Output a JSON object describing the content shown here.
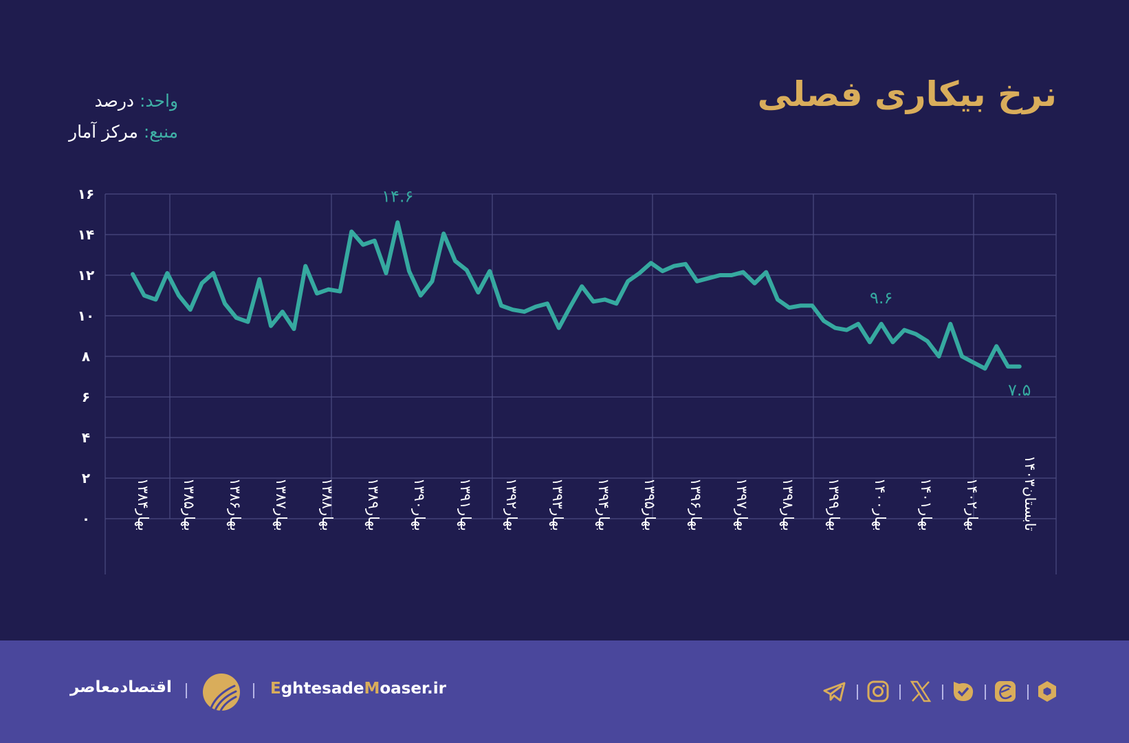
{
  "title": "نرخ بیکاری فصلی",
  "meta": {
    "unit_key": "واحد:",
    "unit_value": "درصد",
    "source_key": "منبع:",
    "source_value": "مرکز آمار"
  },
  "colors": {
    "background": "#1f1c4e",
    "line": "#36a9a0",
    "title": "#d9ad5b",
    "footer": "#4a479c",
    "grid": "#4b4a80"
  },
  "chart_data": {
    "type": "line",
    "title": "نرخ بیکاری فصلی",
    "ylabel": "درصد",
    "ylim": [
      0,
      16
    ],
    "y_ticks": [
      0,
      2,
      4,
      6,
      8,
      10,
      12,
      14,
      16
    ],
    "y_tick_labels": [
      "۰",
      "۲",
      "۴",
      "۶",
      "۸",
      "۱۰",
      "۱۲",
      "۱۴",
      "۱۶"
    ],
    "grid": true,
    "x_tick_labels": [
      "بهار۱۳۸۴",
      "بهار۱۳۸۵",
      "بهار۱۳۸۶",
      "بهار۱۳۸۷",
      "بهار۱۳۸۸",
      "بهار۱۳۸۹",
      "بهار۱۳۹۰",
      "بهار۱۳۹۱",
      "بهار۱۳۹۲",
      "بهار۱۳۹۳",
      "بهار۱۳۹۴",
      "بهار۱۳۹۵",
      "بهار۱۳۹۶",
      "بهار۱۳۹۷",
      "بهار۱۳۹۸",
      "بهار۱۳۹۹",
      "بهار۱۴۰۰",
      "بهار۱۴۰۱",
      "بهار۱۴۰۲",
      "تابستان۱۴۰۳"
    ],
    "x_tick_indices": [
      0,
      4,
      8,
      12,
      16,
      20,
      24,
      28,
      32,
      36,
      40,
      44,
      48,
      52,
      56,
      60,
      64,
      68,
      72,
      77
    ],
    "series": [
      {
        "name": "نرخ بیکاری",
        "values": [
          12.05,
          11.0,
          10.8,
          12.1,
          11.0,
          10.3,
          11.6,
          12.1,
          10.6,
          9.9,
          9.7,
          11.8,
          9.5,
          10.2,
          9.35,
          12.45,
          11.1,
          11.3,
          11.2,
          14.15,
          13.5,
          13.7,
          12.1,
          14.6,
          12.2,
          11.0,
          11.7,
          14.05,
          12.7,
          12.25,
          11.15,
          12.2,
          10.5,
          10.3,
          10.2,
          10.45,
          10.6,
          9.4,
          10.45,
          11.45,
          10.7,
          10.8,
          10.6,
          11.7,
          12.1,
          12.6,
          12.2,
          12.45,
          12.55,
          11.7,
          11.85,
          12.0,
          12.0,
          12.15,
          11.6,
          12.15,
          10.8,
          10.4,
          10.5,
          10.5,
          9.75,
          9.4,
          9.3,
          9.6,
          8.7,
          9.6,
          8.7,
          9.3,
          9.1,
          8.75,
          8.0,
          9.6,
          8.0,
          7.7,
          7.4,
          8.5,
          7.5,
          7.5
        ]
      }
    ],
    "annotations": [
      {
        "index": 23,
        "text": "۱۴.۶"
      },
      {
        "index": 65,
        "text": "۹.۶"
      },
      {
        "index": 77,
        "text": "۷.۵"
      }
    ]
  },
  "footer": {
    "brand_fa": "اقتصادمعاصر",
    "site_e": "E",
    "site_1": "ghtesade",
    "site_m": "M",
    "site_2": "oaser.ir",
    "social_icons": [
      "telegram-icon",
      "instagram-icon",
      "x-icon",
      "bale-icon",
      "eitaa-icon",
      "rubika-icon"
    ]
  }
}
